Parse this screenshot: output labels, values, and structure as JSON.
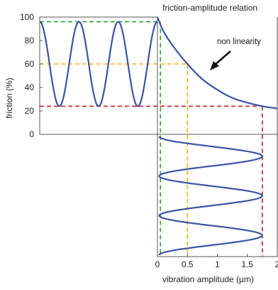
{
  "chart_data": [
    {
      "type": "line",
      "panel": "friction-vs-time",
      "title": "",
      "ylabel": "friction (%)",
      "xlabel": "",
      "ylim": [
        0,
        100
      ],
      "yticks": [
        0,
        20,
        40,
        60,
        80,
        100
      ],
      "grid": false,
      "legend": "none",
      "series": [
        {
          "color": "#3a55a4",
          "description": "oscillating friction between ~24% and ~96%, three full cycles",
          "min": 24,
          "max": 96,
          "cycles": 3
        }
      ]
    },
    {
      "type": "line",
      "panel": "friction-amplitude-relation",
      "title": "friction-amplitude relation",
      "annotation": "non linearity",
      "xlabel": "",
      "ylabel": "",
      "xlim": [
        0,
        2
      ],
      "ylim": [
        0,
        100
      ],
      "grid": false,
      "series": [
        {
          "color": "#3a55a4",
          "x": [
            0,
            0.1,
            0.25,
            0.5,
            0.75,
            1.0,
            1.25,
            1.5,
            1.75,
            2.0
          ],
          "y": [
            100,
            88,
            76,
            60,
            47,
            38,
            31,
            27,
            24,
            22
          ]
        }
      ]
    },
    {
      "type": "line",
      "panel": "vibration-amplitude-vs-time",
      "title": "",
      "xlabel": "vibration amplitude (µm)",
      "ylabel": "",
      "xlim": [
        0,
        2
      ],
      "xticks": [
        "0",
        "0.5",
        "1",
        "1.5",
        "2"
      ],
      "grid": false,
      "series": [
        {
          "color": "#3a55a4",
          "description": "oscillating vibration amplitude between ~0 and ~1.75 µm, three cycles",
          "min": 0.03,
          "max": 1.75,
          "cycles": 3
        }
      ]
    }
  ],
  "guides": [
    {
      "color": "#2e9e2e",
      "friction": 96,
      "amplitude": 0.05
    },
    {
      "color": "#f0b418",
      "friction": 60,
      "amplitude": 0.5
    },
    {
      "color": "#cc2020",
      "friction": 24,
      "amplitude": 1.75
    }
  ],
  "colors": {
    "curve": "#3a55a4",
    "axis": "#555555"
  }
}
